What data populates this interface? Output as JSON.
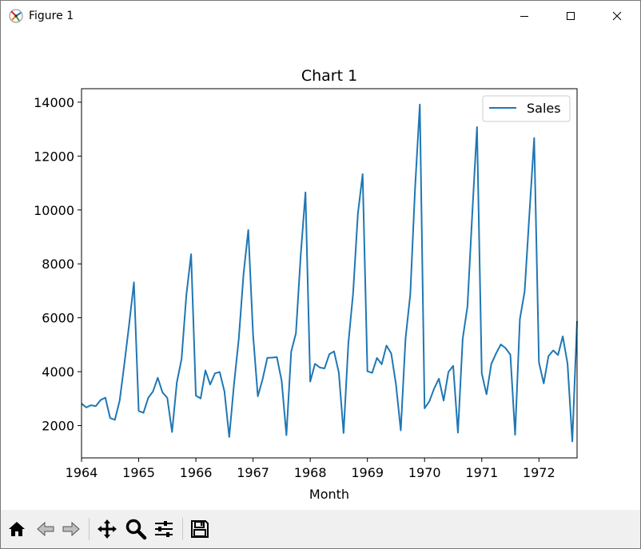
{
  "window": {
    "title": "Figure 1",
    "icon": "matplotlib-figure-icon",
    "controls": [
      "minimize-icon",
      "maximize-icon",
      "close-icon"
    ]
  },
  "toolbar": {
    "buttons": [
      "home-icon",
      "back-icon",
      "forward-icon",
      "pan-icon",
      "zoom-icon",
      "configure-subplots-icon",
      "save-icon"
    ]
  },
  "colors": {
    "line": "#1f77b4"
  },
  "chart_data": {
    "type": "line",
    "title": "Chart 1",
    "xlabel": "Month",
    "ylabel": "",
    "x_start": "1964-01",
    "x_end": "1972-09",
    "x_ticks": [
      "1964",
      "1965",
      "1966",
      "1967",
      "1968",
      "1969",
      "1970",
      "1971",
      "1972"
    ],
    "ylim": [
      800,
      14500
    ],
    "y_ticks": [
      2000,
      4000,
      6000,
      8000,
      10000,
      12000,
      14000
    ],
    "y_tick_labels": [
      "2000",
      "4000",
      "6000",
      "8000",
      "10000",
      "12000",
      "14000"
    ],
    "legend_position": "top-right",
    "grid": false,
    "series": [
      {
        "name": "Sales",
        "values": [
          2815,
          2672,
          2755,
          2721,
          2946,
          3036,
          2282,
          2212,
          2922,
          4301,
          5764,
          7312,
          2541,
          2475,
          3031,
          3266,
          3776,
          3230,
          3028,
          1759,
          3595,
          4474,
          6838,
          8357,
          3113,
          3006,
          4047,
          3523,
          3937,
          3986,
          3260,
          1573,
          3528,
          5211,
          7614,
          9254,
          5375,
          3088,
          3718,
          4514,
          4520,
          4539,
          3663,
          1643,
          4739,
          5428,
          8314,
          10651,
          3633,
          4292,
          4154,
          4121,
          4647,
          4753,
          3965,
          1723,
          5048,
          6922,
          9858,
          11331,
          4016,
          3957,
          4510,
          4276,
          4968,
          4677,
          3523,
          1821,
          5222,
          6872,
          10803,
          13916,
          2639,
          2899,
          3370,
          3740,
          2927,
          3986,
          4217,
          1738,
          5221,
          6424,
          9842,
          13076,
          3934,
          3162,
          4286,
          4676,
          5010,
          4874,
          4633,
          1659,
          5951,
          6981,
          9851,
          12670,
          4348,
          3564,
          4577,
          4788,
          4618,
          5312,
          4298,
          1413,
          5877
        ]
      }
    ]
  }
}
